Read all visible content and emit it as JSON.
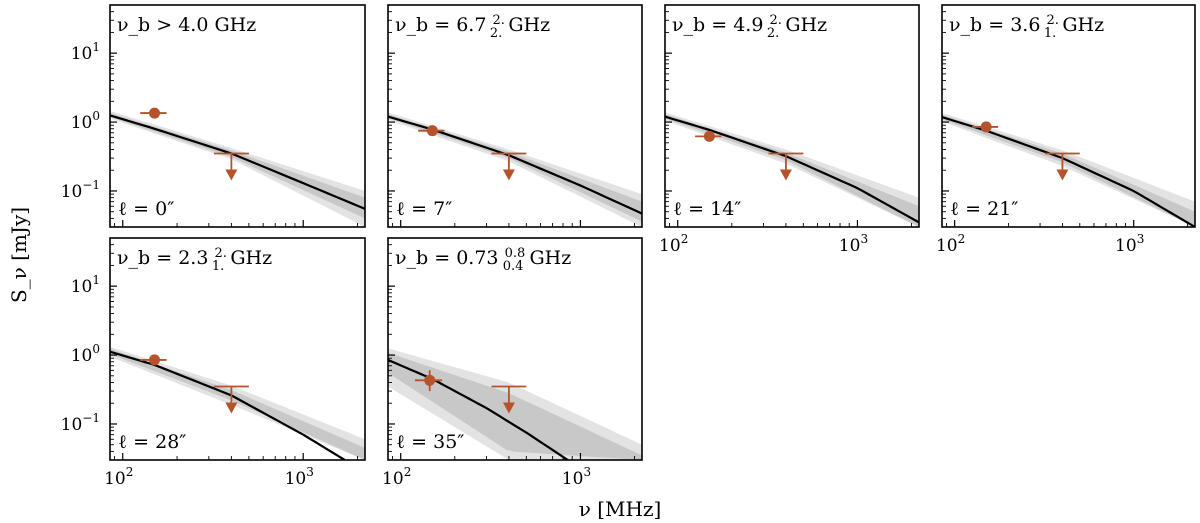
{
  "figure": {
    "ylabel": "S_ν [mJy]",
    "xlabel": "ν [MHz]",
    "xticks": [
      {
        "value": 100,
        "base": "10",
        "exp": "2"
      },
      {
        "value": 1000,
        "base": "10",
        "exp": "3"
      }
    ],
    "yticks": [
      {
        "value": 0.1,
        "base": "10",
        "exp": "−1"
      },
      {
        "value": 1,
        "base": "10",
        "exp": "0"
      },
      {
        "value": 10,
        "base": "10",
        "exp": "1"
      }
    ]
  },
  "colors": {
    "data": "#b5532c",
    "fit": "#000000",
    "band_outer": "#e3e3e3",
    "band_mid": "#c8c8c8",
    "band_inner": "#9c9c9c"
  },
  "chart_data": [
    {
      "type": "line",
      "panel": 1,
      "nu_b_label": "ν_b > 4.0 GHz",
      "ell_label": "ℓ = 0″",
      "x_log": true,
      "y_log": true,
      "xlim": [
        85,
        2200
      ],
      "ylim": [
        0.03,
        50
      ],
      "series": [
        {
          "type": "scatter_errorbar",
          "x": 150,
          "y": 1.35,
          "xerr": [
            125,
            175
          ]
        },
        {
          "type": "upper_limit",
          "x": 400,
          "y": 0.35,
          "xerr": [
            320,
            500
          ]
        }
      ],
      "fit_line": {
        "x": [
          85,
          150,
          400,
          1000,
          2200
        ],
        "y": [
          1.25,
          0.8,
          0.35,
          0.13,
          0.055
        ]
      },
      "bands": [
        {
          "name": "outer",
          "x": [
            85,
            400,
            2200
          ],
          "y_low": [
            1.12,
            0.29,
            0.03
          ],
          "y_high": [
            1.45,
            0.42,
            0.1
          ]
        },
        {
          "name": "mid",
          "x": [
            85,
            400,
            2200
          ],
          "y_low": [
            1.18,
            0.31,
            0.04
          ],
          "y_high": [
            1.36,
            0.39,
            0.08
          ]
        }
      ]
    },
    {
      "type": "line",
      "panel": 2,
      "nu_b_label": "ν_b = 6.7 ^{2.}_{2.} GHz",
      "ell_label": "ℓ = 7″",
      "x_log": true,
      "y_log": true,
      "xlim": [
        85,
        2200
      ],
      "ylim": [
        0.03,
        50
      ],
      "series": [
        {
          "type": "scatter_errorbar",
          "x": 150,
          "y": 0.75,
          "xerr": [
            125,
            175
          ]
        },
        {
          "type": "upper_limit",
          "x": 400,
          "y": 0.35,
          "xerr": [
            320,
            500
          ]
        }
      ],
      "fit_line": {
        "x": [
          85,
          150,
          400,
          1000,
          2200
        ],
        "y": [
          1.2,
          0.78,
          0.33,
          0.12,
          0.047
        ]
      },
      "bands": [
        {
          "name": "outer",
          "x": [
            85,
            400,
            2200
          ],
          "y_low": [
            1.08,
            0.27,
            0.03
          ],
          "y_high": [
            1.38,
            0.4,
            0.09
          ]
        },
        {
          "name": "mid",
          "x": [
            85,
            400,
            2200
          ],
          "y_low": [
            1.14,
            0.3,
            0.036
          ],
          "y_high": [
            1.3,
            0.37,
            0.07
          ]
        }
      ]
    },
    {
      "type": "line",
      "panel": 3,
      "nu_b_label": "ν_b = 4.9 ^{2.}_{2.} GHz",
      "ell_label": "ℓ = 14″",
      "x_log": true,
      "y_log": true,
      "xlim": [
        85,
        2200
      ],
      "ylim": [
        0.03,
        50
      ],
      "series": [
        {
          "type": "scatter_errorbar",
          "x": 150,
          "y": 0.62,
          "xerr": [
            125,
            175
          ]
        },
        {
          "type": "upper_limit",
          "x": 400,
          "y": 0.35,
          "xerr": [
            320,
            500
          ]
        }
      ],
      "fit_line": {
        "x": [
          85,
          150,
          400,
          1000,
          2200
        ],
        "y": [
          1.2,
          0.77,
          0.32,
          0.11,
          0.035
        ]
      },
      "bands": [
        {
          "name": "outer",
          "x": [
            85,
            400,
            2200
          ],
          "y_low": [
            1.05,
            0.25,
            0.03
          ],
          "y_high": [
            1.38,
            0.4,
            0.08
          ]
        },
        {
          "name": "mid",
          "x": [
            85,
            400,
            2200
          ],
          "y_low": [
            1.12,
            0.28,
            0.03
          ],
          "y_high": [
            1.3,
            0.36,
            0.06
          ]
        }
      ]
    },
    {
      "type": "line",
      "panel": 4,
      "nu_b_label": "ν_b = 3.6 ^{2.}_{1.} GHz",
      "ell_label": "ℓ = 21″",
      "x_log": true,
      "y_log": true,
      "xlim": [
        85,
        2200
      ],
      "ylim": [
        0.03,
        50
      ],
      "series": [
        {
          "type": "scatter_errorbar",
          "x": 150,
          "y": 0.85,
          "xerr": [
            125,
            175
          ]
        },
        {
          "type": "upper_limit",
          "x": 400,
          "y": 0.35,
          "xerr": [
            320,
            500
          ]
        }
      ],
      "fit_line": {
        "x": [
          85,
          150,
          400,
          1000,
          2200
        ],
        "y": [
          1.18,
          0.75,
          0.3,
          0.1,
          0.03
        ]
      },
      "bands": [
        {
          "name": "outer",
          "x": [
            85,
            400,
            2200
          ],
          "y_low": [
            1.02,
            0.23,
            0.03
          ],
          "y_high": [
            1.36,
            0.39,
            0.07
          ]
        },
        {
          "name": "mid",
          "x": [
            85,
            400,
            2200
          ],
          "y_low": [
            1.09,
            0.26,
            0.03
          ],
          "y_high": [
            1.28,
            0.35,
            0.05
          ]
        }
      ]
    },
    {
      "type": "line",
      "panel": 5,
      "nu_b_label": "ν_b = 2.3 ^{2.}_{1.} GHz",
      "ell_label": "ℓ = 28″",
      "x_log": true,
      "y_log": true,
      "xlim": [
        85,
        2200
      ],
      "ylim": [
        0.03,
        50
      ],
      "series": [
        {
          "type": "scatter_errorbar",
          "x": 150,
          "y": 0.85,
          "xerr": [
            125,
            175
          ]
        },
        {
          "type": "upper_limit",
          "x": 400,
          "y": 0.35,
          "xerr": [
            320,
            500
          ]
        }
      ],
      "fit_line": {
        "x": [
          85,
          150,
          400,
          1000,
          1700
        ],
        "y": [
          1.12,
          0.72,
          0.26,
          0.07,
          0.03
        ]
      },
      "bands": [
        {
          "name": "outer",
          "x": [
            85,
            400,
            2200
          ],
          "y_low": [
            0.95,
            0.19,
            0.03
          ],
          "y_high": [
            1.32,
            0.36,
            0.06
          ]
        },
        {
          "name": "mid",
          "x": [
            85,
            400,
            2200
          ],
          "y_low": [
            1.03,
            0.22,
            0.03
          ],
          "y_high": [
            1.24,
            0.31,
            0.045
          ]
        }
      ]
    },
    {
      "type": "line",
      "panel": 6,
      "nu_b_label": "ν_b = 0.73 ^{0.8}_{0.4} GHz",
      "ell_label": "ℓ = 35″",
      "x_log": true,
      "y_log": true,
      "xlim": [
        85,
        2200
      ],
      "ylim": [
        0.03,
        50
      ],
      "series": [
        {
          "type": "scatter_errorbar",
          "x": 145,
          "y": 0.43,
          "xerr": [
            120,
            170
          ],
          "yerr": [
            0.3,
            0.6
          ]
        },
        {
          "type": "upper_limit",
          "x": 400,
          "y": 0.35,
          "xerr": [
            320,
            500
          ]
        }
      ],
      "fit_line": {
        "x": [
          85,
          150,
          300,
          500,
          850
        ],
        "y": [
          0.85,
          0.45,
          0.17,
          0.075,
          0.03
        ]
      },
      "bands": [
        {
          "name": "outer",
          "x": [
            85,
            400,
            2200
          ],
          "y_low": [
            0.35,
            0.03,
            0.03
          ],
          "y_high": [
            1.25,
            0.4,
            0.05
          ]
        },
        {
          "name": "mid",
          "x": [
            85,
            400,
            2200
          ],
          "y_low": [
            0.55,
            0.04,
            0.03
          ],
          "y_high": [
            1.08,
            0.28,
            0.035
          ]
        }
      ]
    }
  ]
}
